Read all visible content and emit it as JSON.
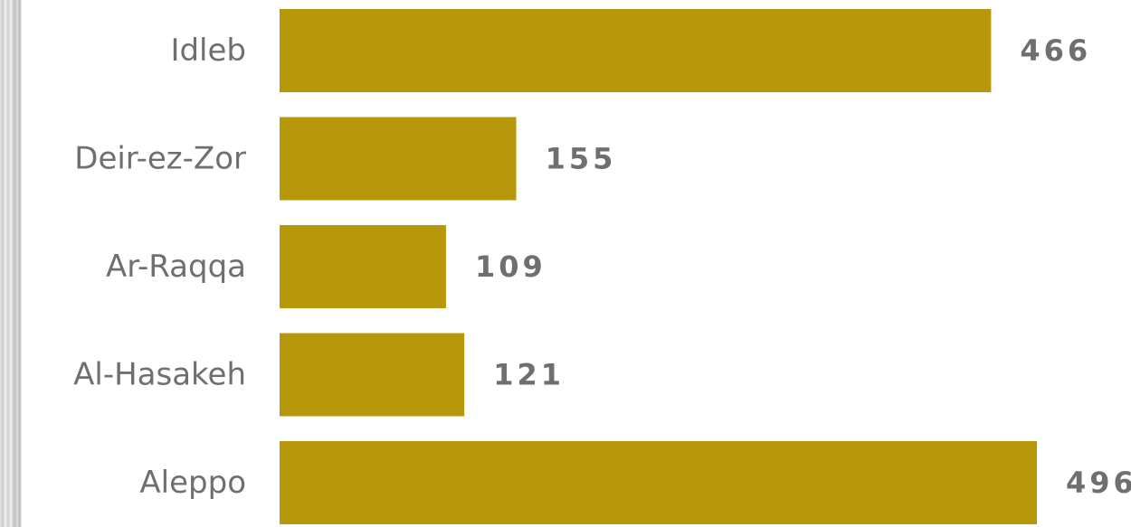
{
  "chart_data": {
    "type": "bar",
    "orientation": "horizontal",
    "categories": [
      "Idleb",
      "Deir-ez-Zor",
      "Ar-Raqqa",
      "Al-Hasakeh",
      "Aleppo"
    ],
    "values": [
      466,
      155,
      109,
      121,
      496
    ],
    "value_labels": [
      "466",
      "155",
      "109",
      "121",
      "496"
    ],
    "xlim": [
      0,
      496
    ],
    "bar_color": "#b8980b",
    "grid": false,
    "legend": "none"
  }
}
